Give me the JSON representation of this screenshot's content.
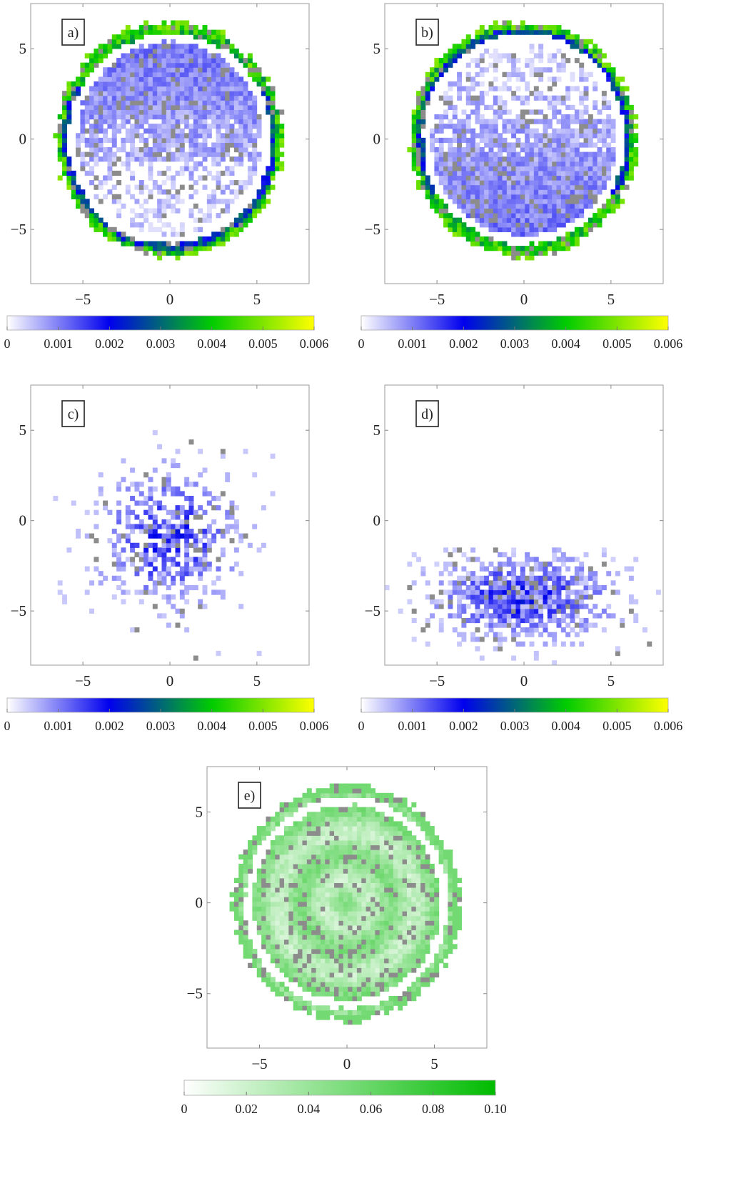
{
  "chart_data": [
    {
      "type": "heatmap",
      "label": "a)",
      "xlim": [
        -8,
        8
      ],
      "ylim": [
        -8,
        7.5
      ],
      "xticks": [
        -5,
        0,
        5
      ],
      "yticks": [
        -5,
        0,
        5
      ],
      "xtick_labels": [
        "−5",
        "0",
        "5"
      ],
      "ytick_labels": [
        "−5",
        "0",
        "5"
      ],
      "disk_radius": 6.5,
      "gap_radius": 5.6,
      "concentration": "top",
      "colorbar": {
        "min": 0,
        "max": 0.006,
        "ticks": [
          "0",
          "0.001",
          "0.002",
          "0.003",
          "0.004",
          "0.005",
          "0.006"
        ],
        "colors": [
          "#ffffff",
          "#0000ee",
          "#00cc00",
          "#ffff00"
        ]
      }
    },
    {
      "type": "heatmap",
      "label": "b)",
      "xlim": [
        -8,
        8
      ],
      "ylim": [
        -8,
        7.5
      ],
      "xticks": [
        -5,
        0,
        5
      ],
      "yticks": [
        -5,
        0,
        5
      ],
      "xtick_labels": [
        "−5",
        "0",
        "5"
      ],
      "ytick_labels": [
        "−5",
        "0",
        "5"
      ],
      "disk_radius": 6.5,
      "gap_radius": 5.6,
      "concentration": "bottom",
      "colorbar": {
        "min": 0,
        "max": 0.006,
        "ticks": [
          "0",
          "0.001",
          "0.002",
          "0.003",
          "0.004",
          "0.005",
          "0.006"
        ],
        "colors": [
          "#ffffff",
          "#0000ee",
          "#00cc00",
          "#ffff00"
        ]
      }
    },
    {
      "type": "heatmap",
      "label": "c)",
      "xlim": [
        -8,
        8
      ],
      "ylim": [
        -8,
        7.5
      ],
      "xticks": [
        -5,
        0,
        5
      ],
      "yticks": [
        -5,
        0,
        5
      ],
      "xtick_labels": [
        "−5",
        "0",
        "5"
      ],
      "ytick_labels": [
        "−5",
        "0",
        "5"
      ],
      "cloud_center": [
        0,
        -1
      ],
      "cloud_spread": [
        2.6,
        2.4
      ],
      "concentration": "scattered",
      "colorbar": {
        "min": 0,
        "max": 0.006,
        "ticks": [
          "0",
          "0.001",
          "0.002",
          "0.003",
          "0.004",
          "0.005",
          "0.006"
        ],
        "colors": [
          "#ffffff",
          "#0000ee",
          "#00cc00",
          "#ffff00"
        ]
      }
    },
    {
      "type": "heatmap",
      "label": "d)",
      "xlim": [
        -8,
        8
      ],
      "ylim": [
        -8,
        7.5
      ],
      "xticks": [
        -5,
        0,
        5
      ],
      "yticks": [
        -5,
        0,
        5
      ],
      "xtick_labels": [
        "−5",
        "0",
        "5"
      ],
      "ytick_labels": [
        "−5",
        "0",
        "5"
      ],
      "cloud_center": [
        0,
        -4.2
      ],
      "cloud_spread": [
        4.5,
        2.0
      ],
      "concentration": "lower-cap",
      "colorbar": {
        "min": 0,
        "max": 0.006,
        "ticks": [
          "0",
          "0.001",
          "0.002",
          "0.003",
          "0.004",
          "0.005",
          "0.006"
        ],
        "colors": [
          "#ffffff",
          "#0000ee",
          "#00cc00",
          "#ffff00"
        ]
      }
    },
    {
      "type": "heatmap",
      "label": "e)",
      "xlim": [
        -8,
        8
      ],
      "ylim": [
        -8,
        7.5
      ],
      "xticks": [
        -5,
        0,
        5
      ],
      "yticks": [
        -5,
        0,
        5
      ],
      "xtick_labels": [
        "−5",
        "0",
        "5"
      ],
      "ytick_labels": [
        "−5",
        "0",
        "5"
      ],
      "disk_radius": 6.5,
      "gap_radius": 5.6,
      "concentration": "concentric-rings",
      "colorbar": {
        "min": 0,
        "max": 0.1,
        "ticks": [
          "0",
          "0.02",
          "0.04",
          "0.06",
          "0.08",
          "0.10"
        ],
        "colors": [
          "#ffffff",
          "#00bb00"
        ]
      }
    }
  ]
}
